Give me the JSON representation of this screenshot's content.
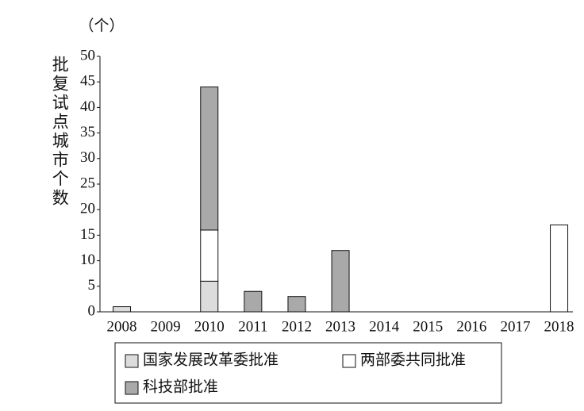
{
  "chart_data": {
    "type": "stacked-bar",
    "y_label": "批复试点城市个数",
    "y_unit": "（个）",
    "categories": [
      "2008",
      "2009",
      "2010",
      "2011",
      "2012",
      "2013",
      "2014",
      "2015",
      "2016",
      "2017",
      "2018"
    ],
    "series": [
      {
        "name": "国家发展改革委批准",
        "color": "#dcdcdc",
        "values": [
          1,
          0,
          6,
          0,
          0,
          0,
          0,
          0,
          0,
          0,
          0
        ]
      },
      {
        "name": "两部委共同批准",
        "color": "#ffffff",
        "values": [
          0,
          0,
          10,
          0,
          0,
          0,
          0,
          0,
          0,
          0,
          17
        ]
      },
      {
        "name": "科技部批准",
        "color": "#a9a9a9",
        "values": [
          0,
          0,
          28,
          4,
          3,
          12,
          0,
          0,
          0,
          0,
          0
        ]
      }
    ],
    "ylim": [
      0,
      50
    ],
    "yticks": [
      0,
      5,
      10,
      15,
      20,
      25,
      30,
      35,
      40,
      45,
      50
    ],
    "grid": false
  }
}
